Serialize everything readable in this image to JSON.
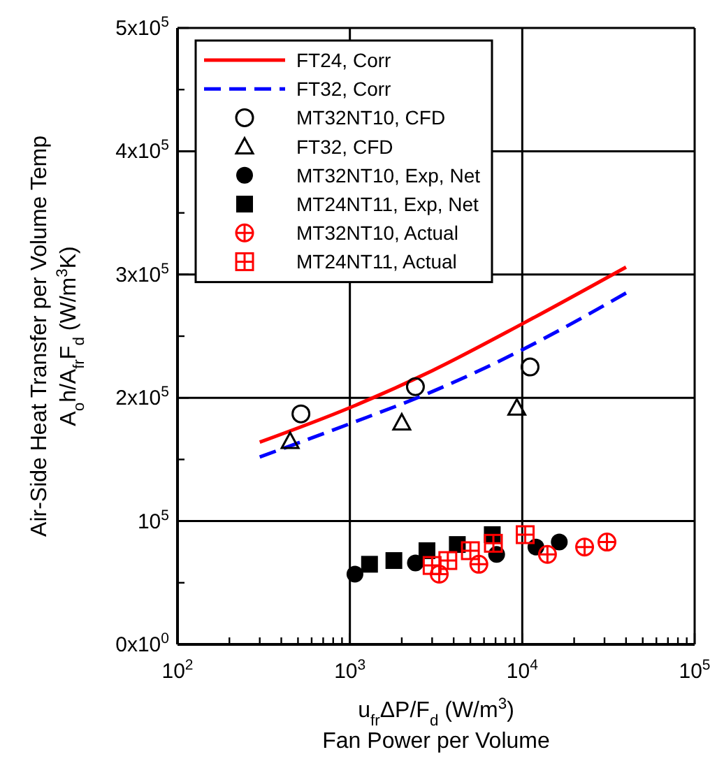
{
  "chart_data": {
    "type": "scatter",
    "xlabel": "u$_{fr}$ΔP/F$_{d}$ (W/m$^{3}$)\nFan Power per Volume",
    "ylabel": "Air-Side Heat Transfer per Volume Temp\nA$_{o}$h/A$_{fr}$F$_{d}$ (W/m$^{3}$K)",
    "log": "x",
    "grid": true,
    "legend": "top left",
    "xlim": [
      100,
      100000
    ],
    "ylim": [
      0,
      500000
    ],
    "xticks": [
      {
        "value": 100,
        "label": "10$^{2}$"
      },
      {
        "value": 200,
        "label": null
      },
      {
        "value": 300,
        "label": null
      },
      {
        "value": 400,
        "label": null
      },
      {
        "value": 500,
        "label": null
      },
      {
        "value": 600,
        "label": null
      },
      {
        "value": 700,
        "label": null
      },
      {
        "value": 800,
        "label": null
      },
      {
        "value": 900,
        "label": null
      },
      {
        "value": 1000,
        "label": "10$^{3}$"
      },
      {
        "value": 2000,
        "label": null
      },
      {
        "value": 3000,
        "label": null
      },
      {
        "value": 4000,
        "label": null
      },
      {
        "value": 5000,
        "label": null
      },
      {
        "value": 6000,
        "label": null
      },
      {
        "value": 7000,
        "label": null
      },
      {
        "value": 8000,
        "label": null
      },
      {
        "value": 9000,
        "label": null
      },
      {
        "value": 10000,
        "label": "10$^{4}$"
      },
      {
        "value": 20000,
        "label": null
      },
      {
        "value": 30000,
        "label": null
      },
      {
        "value": 40000,
        "label": null
      },
      {
        "value": 50000,
        "label": null
      },
      {
        "value": 60000,
        "label": null
      },
      {
        "value": 70000,
        "label": null
      },
      {
        "value": 80000,
        "label": null
      },
      {
        "value": 90000,
        "label": null
      },
      {
        "value": 100000,
        "label": "10$^{5}$"
      }
    ],
    "yticks": [
      {
        "value": 0,
        "label": "0x10$^{0}$"
      },
      {
        "value": 50000,
        "label": null
      },
      {
        "value": 100000,
        "label": "10$^{5}$"
      },
      {
        "value": 150000,
        "label": null
      },
      {
        "value": 200000,
        "label": "2x10$^{5}$"
      },
      {
        "value": 250000,
        "label": null
      },
      {
        "value": 300000,
        "label": "3x10$^{5}$"
      },
      {
        "value": 350000,
        "label": null
      },
      {
        "value": 400000,
        "label": "4x10$^{5}$"
      },
      {
        "value": 450000,
        "label": null
      },
      {
        "value": 500000,
        "label": "5x10$^{5}$"
      }
    ],
    "series": [
      {
        "name": "FT24, Corr",
        "type": "line",
        "color": "#ff0000",
        "line_style": "solid",
        "marker": "none",
        "x": [
          300,
          1000,
          3000,
          10000,
          40000
        ],
        "values": [
          164000,
          192000,
          222000,
          260000,
          306000
        ]
      },
      {
        "name": "FT32, Corr",
        "type": "line",
        "color": "#0000ff",
        "line_style": "dashed",
        "marker": "none",
        "x": [
          300,
          1000,
          3000,
          10000,
          40000
        ],
        "values": [
          152000,
          179000,
          205000,
          239000,
          285000
        ]
      },
      {
        "name": "MT32NT10, CFD",
        "type": "scatter",
        "color": "#000000",
        "marker": "circle-open",
        "x": [
          520,
          2400,
          11100
        ],
        "values": [
          187000,
          209000,
          225000
        ]
      },
      {
        "name": "FT32, CFD",
        "type": "scatter",
        "color": "#000000",
        "marker": "triangle-open",
        "x": [
          450,
          2000,
          9300
        ],
        "values": [
          165000,
          180000,
          192000
        ]
      },
      {
        "name": "MT32NT10, Exp, Net",
        "type": "scatter",
        "color": "#000000",
        "marker": "circle",
        "x": [
          1070,
          2400,
          7100,
          12000,
          16400
        ],
        "values": [
          57000,
          66000,
          73000,
          79000,
          83000
        ]
      },
      {
        "name": "MT24NT11, Exp, Net",
        "type": "scatter",
        "color": "#000000",
        "marker": "square",
        "x": [
          1300,
          1800,
          2800,
          4200,
          6700
        ],
        "values": [
          65000,
          68000,
          76000,
          81000,
          89000
        ]
      },
      {
        "name": "MT32NT10, Actual",
        "type": "scatter",
        "color": "#ff0000",
        "marker": "circle-cross",
        "x": [
          3300,
          5600,
          14000,
          23000,
          31000
        ],
        "values": [
          57000,
          65000,
          73000,
          79000,
          83000
        ]
      },
      {
        "name": "MT24NT11, Actual",
        "type": "scatter",
        "color": "#ff0000",
        "marker": "square-cross",
        "x": [
          3000,
          3700,
          5000,
          6800,
          10400
        ],
        "values": [
          64000,
          68000,
          76000,
          82000,
          89000
        ]
      }
    ]
  }
}
